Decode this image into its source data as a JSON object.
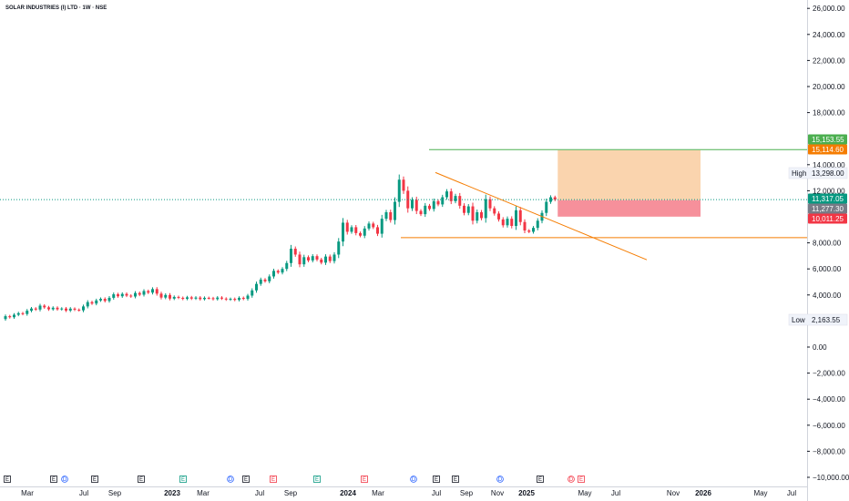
{
  "chart_data": {
    "type": "candlestick",
    "title": "SOLAR INDUSTRIES (I) LTD · 1W · NSE",
    "y_axis": {
      "ticks": [
        "26,000.00",
        "24,000.00",
        "22,000.00",
        "20,000.00",
        "18,000.00",
        "14,000.00",
        "12,000.00",
        "8,000.00",
        "6,000.00",
        "4,000.00",
        "0.00",
        "−2,000.00",
        "−4,000.00",
        "−6,000.00",
        "−8,000.00",
        "−10,000.00"
      ],
      "tick_values": [
        26000,
        24000,
        22000,
        20000,
        18000,
        14000,
        12000,
        8000,
        6000,
        4000,
        0,
        -2000,
        -4000,
        -6000,
        -8000,
        -10000
      ],
      "ylim": [
        -10000,
        26000
      ]
    },
    "x_axis": {
      "labels": [
        "Mar",
        "Jul",
        "Sep",
        "2023",
        "Mar",
        "Jul",
        "Sep",
        "2024",
        "Mar",
        "Jul",
        "Sep",
        "Nov",
        "2025",
        "May",
        "Jul",
        "Nov",
        "2026",
        "May",
        "Jul"
      ],
      "bold": [
        "2023",
        "2024",
        "2025",
        "2026"
      ]
    },
    "price_badges": [
      {
        "value": "15,153.55",
        "color": "#4caf50"
      },
      {
        "value": "15,114.60",
        "color": "#f57c00"
      },
      {
        "value": "11,317.05",
        "color": "#089981"
      },
      {
        "value": "11,277.30",
        "color": "#787b86"
      },
      {
        "value": "10,011.25",
        "color": "#f23645"
      }
    ],
    "tags": [
      {
        "label": "High",
        "value": "13,298.00"
      },
      {
        "label": "Low",
        "value": "2,163.55"
      }
    ],
    "position": {
      "entry": 11277.3,
      "target": 15114.6,
      "stop": 10011.25
    },
    "levels": {
      "target_line": 15153.55,
      "current_price": 11317.05,
      "support": 8400
    },
    "trendline": {
      "from": 13400,
      "to": 6700
    },
    "events": [
      "E",
      "E",
      "D",
      "E",
      "E",
      "E",
      "D",
      "E",
      "E",
      "E",
      "E",
      "D",
      "E",
      "E",
      "D",
      "E"
    ],
    "series": [
      [
        2150,
        2370
      ],
      [
        2370,
        2290
      ],
      [
        2290,
        2480
      ],
      [
        2480,
        2600
      ],
      [
        2600,
        2540
      ],
      [
        2540,
        2790
      ],
      [
        2790,
        2960
      ],
      [
        2960,
        2880
      ],
      [
        2880,
        3180
      ],
      [
        3180,
        3050
      ],
      [
        3050,
        2900
      ],
      [
        2900,
        3020
      ],
      [
        3020,
        2900
      ],
      [
        2900,
        2960
      ],
      [
        2960,
        2800
      ],
      [
        2800,
        2950
      ],
      [
        2950,
        2870
      ],
      [
        2870,
        2820
      ],
      [
        2820,
        3120
      ],
      [
        3120,
        3450
      ],
      [
        3450,
        3340
      ],
      [
        3340,
        3580
      ],
      [
        3580,
        3700
      ],
      [
        3700,
        3540
      ],
      [
        3540,
        3780
      ],
      [
        3780,
        4050
      ],
      [
        4050,
        3900
      ],
      [
        3900,
        4080
      ],
      [
        4080,
        3950
      ],
      [
        3950,
        3880
      ],
      [
        3880,
        4150
      ],
      [
        4150,
        4020
      ],
      [
        4020,
        4300
      ],
      [
        4300,
        4180
      ],
      [
        4180,
        4450
      ],
      [
        4450,
        4100
      ],
      [
        4100,
        3800
      ],
      [
        3800,
        4000
      ],
      [
        4000,
        3720
      ],
      [
        3720,
        3850
      ],
      [
        3850,
        3780
      ],
      [
        3780,
        3700
      ],
      [
        3700,
        3820
      ],
      [
        3820,
        3720
      ],
      [
        3720,
        3800
      ],
      [
        3800,
        3680
      ],
      [
        3680,
        3780
      ],
      [
        3780,
        3750
      ],
      [
        3750,
        3680
      ],
      [
        3680,
        3800
      ],
      [
        3800,
        3720
      ],
      [
        3720,
        3650
      ],
      [
        3650,
        3700
      ],
      [
        3700,
        3620
      ],
      [
        3620,
        3780
      ],
      [
        3780,
        3700
      ],
      [
        3700,
        3950
      ],
      [
        3950,
        4350
      ],
      [
        4350,
        4850
      ],
      [
        4850,
        5180
      ],
      [
        5180,
        5050
      ],
      [
        5050,
        5420
      ],
      [
        5420,
        5850
      ],
      [
        5850,
        5720
      ],
      [
        5720,
        6000
      ],
      [
        6000,
        6450
      ],
      [
        6450,
        7550
      ],
      [
        7550,
        7100
      ],
      [
        7100,
        6350
      ],
      [
        6350,
        6900
      ],
      [
        6900,
        6650
      ],
      [
        6650,
        6980
      ],
      [
        6980,
        6720
      ],
      [
        6720,
        6480
      ],
      [
        6480,
        6950
      ],
      [
        6950,
        6600
      ],
      [
        6600,
        7100
      ],
      [
        7100,
        8100
      ],
      [
        8100,
        9550
      ],
      [
        9550,
        8850
      ],
      [
        8850,
        9200
      ],
      [
        9200,
        8750
      ],
      [
        8750,
        8550
      ],
      [
        8550,
        9100
      ],
      [
        9100,
        9480
      ],
      [
        9480,
        9200
      ],
      [
        9200,
        8700
      ],
      [
        8700,
        9850
      ],
      [
        9850,
        10350
      ],
      [
        10350,
        9750
      ],
      [
        9750,
        11150
      ],
      [
        11150,
        12850
      ],
      [
        12850,
        12000
      ],
      [
        12000,
        10650
      ],
      [
        10650,
        11300
      ],
      [
        11300,
        10450
      ],
      [
        10450,
        10200
      ],
      [
        10200,
        10850
      ],
      [
        10850,
        10600
      ],
      [
        10600,
        11200
      ],
      [
        11200,
        10950
      ],
      [
        10950,
        11500
      ],
      [
        11500,
        11950
      ],
      [
        11950,
        11200
      ],
      [
        11200,
        11600
      ],
      [
        11600,
        10850
      ],
      [
        10850,
        10300
      ],
      [
        10300,
        10800
      ],
      [
        10800,
        9700
      ],
      [
        9700,
        10350
      ],
      [
        10350,
        9900
      ],
      [
        9900,
        11350
      ],
      [
        11350,
        10650
      ],
      [
        10650,
        10250
      ],
      [
        10250,
        9800
      ],
      [
        9800,
        9350
      ],
      [
        9350,
        9850
      ],
      [
        9850,
        9300
      ],
      [
        9300,
        10500
      ],
      [
        10500,
        9600
      ],
      [
        9600,
        8950
      ],
      [
        8950,
        8850
      ],
      [
        8850,
        9150
      ],
      [
        9150,
        9700
      ],
      [
        9700,
        10300
      ],
      [
        10300,
        11150
      ],
      [
        11150,
        11500
      ],
      [
        11500,
        11317
      ]
    ]
  }
}
